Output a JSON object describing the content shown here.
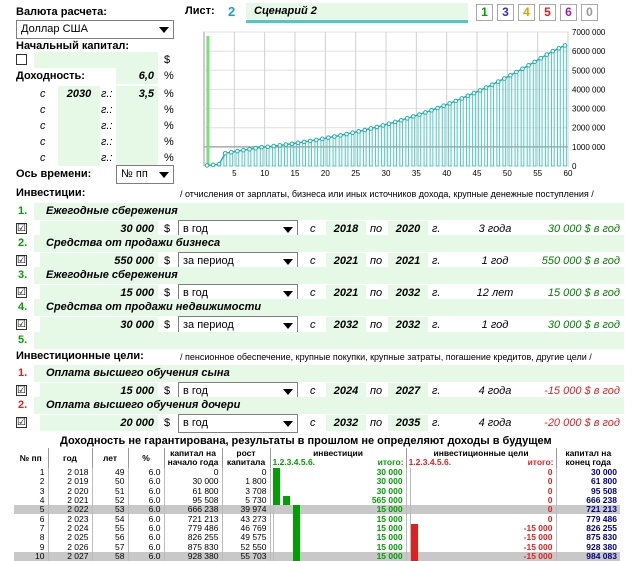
{
  "top": {
    "currency_label": "Валюта расчета:",
    "currency_value": "Доллар США",
    "sheet_label": "Лист:",
    "sheet_number": "2",
    "scenario_name": "Сценарий 2",
    "tabs": [
      "1",
      "3",
      "4",
      "5",
      "6",
      "0"
    ],
    "tab_colors": [
      "#00a000",
      "#3030c0",
      "#e0a000",
      "#e02020",
      "#a020a0",
      "#999999"
    ]
  },
  "capital": {
    "label": "Начальный капитал:",
    "unit": "$"
  },
  "yield": {
    "label": "Доходность:",
    "value": "6,0",
    "pct": "%",
    "rows": [
      {
        "c": "с",
        "year": "2030",
        "g": "г.:",
        "val": "3,5",
        "pct": "%"
      },
      {
        "c": "с",
        "year": "",
        "g": "г.:",
        "val": "",
        "pct": "%"
      },
      {
        "c": "с",
        "year": "",
        "g": "г.:",
        "val": "",
        "pct": "%"
      },
      {
        "c": "с",
        "year": "",
        "g": "г.:",
        "val": "",
        "pct": "%"
      },
      {
        "c": "с",
        "year": "",
        "g": "г.:",
        "val": "",
        "pct": "%"
      }
    ],
    "time_axis_label": "Ось времени:",
    "time_axis_value": "№ пп"
  },
  "chart_data": {
    "type": "bar",
    "series_kind": "bar+line",
    "x_ticks": [
      "5",
      "10",
      "15",
      "20",
      "25",
      "30",
      "35",
      "40",
      "45",
      "50",
      "55",
      "60"
    ],
    "y_ticks": [
      "0",
      "1000 000",
      "2000 000",
      "3000 000",
      "4000 000",
      "5000 000",
      "6000 000",
      "7000 000"
    ],
    "ylim": [
      0,
      7000000
    ],
    "xlim": [
      0,
      60
    ],
    "x": [
      1,
      2,
      3,
      4,
      5,
      6,
      7,
      8,
      9,
      10,
      11,
      12,
      13,
      14,
      15,
      16,
      17,
      18,
      19,
      20,
      21,
      22,
      23,
      24,
      25,
      26,
      27,
      28,
      29,
      30,
      31,
      32,
      33,
      34,
      35,
      36,
      37,
      38,
      39,
      40,
      41,
      42,
      43,
      44,
      45,
      46,
      47,
      48,
      49,
      50,
      51,
      52,
      53,
      54,
      55,
      56,
      57,
      58,
      59,
      60
    ],
    "values": [
      30000,
      61800,
      95508,
      666238,
      721213,
      779486,
      826255,
      875830,
      928380,
      984083,
      1000000,
      1040000,
      1080000,
      1120000,
      1160000,
      1210000,
      1260000,
      1310000,
      1360000,
      1420000,
      1480000,
      1540000,
      1600000,
      1670000,
      1740000,
      1810000,
      1880000,
      1960000,
      2040000,
      2120000,
      2210000,
      2300000,
      2390000,
      2490000,
      2590000,
      2690000,
      2800000,
      2910000,
      3030000,
      3150000,
      3270000,
      3400000,
      3530000,
      3670000,
      3810000,
      3950000,
      4100000,
      4250000,
      4410000,
      4570000,
      4740000,
      4910000,
      5080000,
      5260000,
      5440000,
      5630000,
      5820000,
      6000000,
      6150000,
      6300000
    ],
    "ref_line": 1000000,
    "bar_color": "#4fc8c8",
    "line_color": "#20b0b0"
  },
  "investments": {
    "title": "Инвестиции:",
    "note": "/ отчисления от зарплаты, бизнеса или иных источников дохода, крупные денежные поступления /",
    "items": [
      {
        "n": "1.",
        "name": "Ежегодные сбережения",
        "checked": "☑",
        "amount": "30 000",
        "cur": "$",
        "period": "в год",
        "s": "с",
        "from": "2018",
        "po": "по",
        "to": "2020",
        "g": "г.",
        "dur": "3 года",
        "sum": "30 000 $ в год"
      },
      {
        "n": "2.",
        "name": "Средства от продажи бизнеса",
        "checked": "☑",
        "amount": "550 000",
        "cur": "$",
        "period": "за период",
        "s": "с",
        "from": "2021",
        "po": "по",
        "to": "2021",
        "g": "г.",
        "dur": "1 год",
        "sum": "550 000 $ в год"
      },
      {
        "n": "3.",
        "name": "Ежегодные сбережения",
        "checked": "☑",
        "amount": "15 000",
        "cur": "$",
        "period": "в год",
        "s": "с",
        "from": "2021",
        "po": "по",
        "to": "2032",
        "g": "г.",
        "dur": "12 лет",
        "sum": "15 000 $ в год"
      },
      {
        "n": "4.",
        "name": "Средства от продажи недвижимости",
        "checked": "☑",
        "amount": "30 000",
        "cur": "$",
        "period": "за период",
        "s": "с",
        "from": "2032",
        "po": "по",
        "to": "2032",
        "g": "г.",
        "dur": "1 год",
        "sum": "30 000 $ в год"
      }
    ],
    "empty_n": "5."
  },
  "goals": {
    "title": "Инвестиционные цели:",
    "note": "/ пенсионное обеспечение, крупные покупки, крупные затраты, погашение кредитов, другие цели /",
    "items": [
      {
        "n": "1.",
        "name": "Оплата высшего обучения сына",
        "checked": "☑",
        "amount": "15 000",
        "cur": "$",
        "period": "в год",
        "s": "с",
        "from": "2024",
        "po": "по",
        "to": "2027",
        "g": "г.",
        "dur": "4 года",
        "sum": "-15 000 $ в год"
      },
      {
        "n": "2.",
        "name": "Оплата высшего обучения дочери",
        "checked": "☑",
        "amount": "20 000",
        "cur": "$",
        "period": "в год",
        "s": "с",
        "from": "2032",
        "po": "по",
        "to": "2035",
        "g": "г.",
        "dur": "4 года",
        "sum": "-20 000 $ в год"
      }
    ]
  },
  "disclaimer": "Доходность не гарантирована, результаты в прошлом не определяют доходы в будущем",
  "table": {
    "headers": [
      "№ пп",
      "год",
      "лет",
      "%",
      "капитал на начало года",
      "рост капитала",
      "инвестиции",
      "итого:",
      "инвестиционные цели",
      "итого:",
      "капитал на конец года"
    ],
    "sub_inv": "1.2.3.4.5.6.",
    "sub_goal": "1.2.3.4.5.6.",
    "rows": [
      [
        "1",
        "2 018",
        "49",
        "6.0",
        "0",
        "0",
        "30 000",
        "0",
        "30 000"
      ],
      [
        "2",
        "2 019",
        "50",
        "6.0",
        "30 000",
        "1 800",
        "30 000",
        "0",
        "61 800"
      ],
      [
        "3",
        "2 020",
        "51",
        "6.0",
        "61 800",
        "3 708",
        "30 000",
        "0",
        "95 508"
      ],
      [
        "4",
        "2 021",
        "52",
        "6.0",
        "95 508",
        "5 730",
        "565 000",
        "0",
        "666 238"
      ],
      [
        "5",
        "2 022",
        "53",
        "6.0",
        "666 238",
        "39 974",
        "15 000",
        "0",
        "721 213"
      ],
      [
        "6",
        "2 023",
        "54",
        "6.0",
        "721 213",
        "43 273",
        "15 000",
        "0",
        "779 486"
      ],
      [
        "7",
        "2 024",
        "55",
        "6.0",
        "779 486",
        "46 769",
        "15 000",
        "-15 000",
        "826 255"
      ],
      [
        "8",
        "2 025",
        "56",
        "6.0",
        "826 255",
        "49 575",
        "15 000",
        "-15 000",
        "875 830"
      ],
      [
        "9",
        "2 026",
        "57",
        "6.0",
        "875 830",
        "52 550",
        "15 000",
        "-15 000",
        "928 380"
      ],
      [
        "10",
        "2 027",
        "58",
        "6.0",
        "928 380",
        "55 703",
        "15 000",
        "-15 000",
        "984 083"
      ]
    ]
  }
}
